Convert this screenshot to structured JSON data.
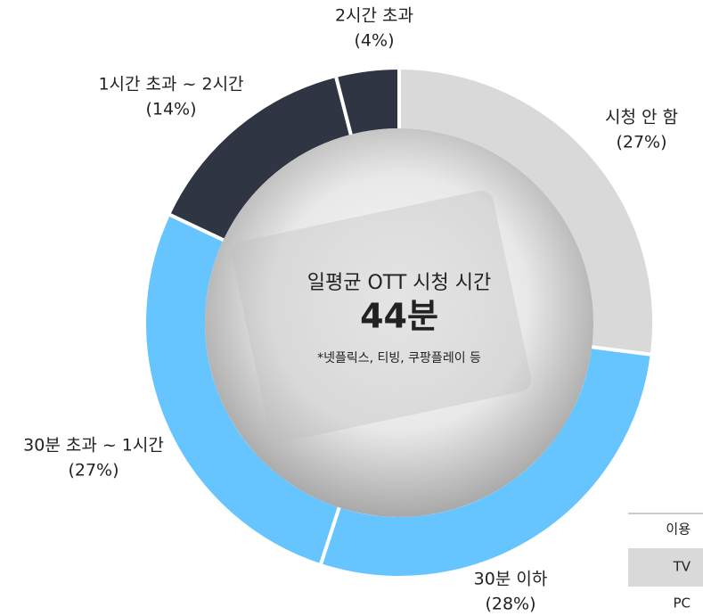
{
  "chart_data": {
    "type": "donut",
    "categories": [
      "시청 안 함",
      "30분 이하",
      "30분 초과 ~ 1시간",
      "1시간 초과 ~ 2시간",
      "2시간 초과"
    ],
    "values": [
      27,
      28,
      27,
      14,
      4
    ],
    "value_labels": [
      "(27%)",
      "(28%)",
      "(27%)",
      "(14%)",
      "(4%)"
    ],
    "colors": [
      "#d9d9d9",
      "#66c5ff",
      "#66c5ff",
      "#2f3542",
      "#2f3542"
    ],
    "center_title": "일평균 OTT 시청 시간",
    "center_value": "44분",
    "center_note": "*넷플릭스, 티빙, 쿠팡플레이 등"
  },
  "side_table": {
    "rows": [
      "이용",
      "TV",
      "PC"
    ]
  }
}
